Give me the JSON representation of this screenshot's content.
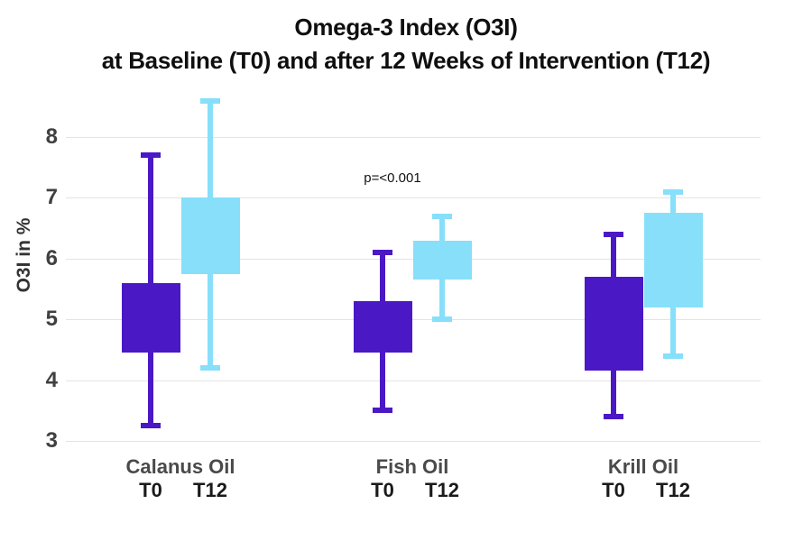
{
  "title": {
    "line1": "Omega-3 Index (O3I)",
    "line2": "at Baseline (T0) and after 12 Weeks of Intervention (T12)"
  },
  "colors": {
    "t0_box": "#4B18C6",
    "t12_box": "#87DFFA",
    "gridline": "#e4e4e4",
    "title_text": "#0f0f0f",
    "y_tick_text": "#404040",
    "group_label_text": "#4a4a4a",
    "time_label_text": "#1a1a1a"
  },
  "chart_data": {
    "type": "boxplot",
    "title": "Omega-3 Index (O3I) at Baseline (T0) and after 12 Weeks of Intervention (T12)",
    "ylabel": "O3I in %",
    "xlabel": "",
    "ylim": [
      3,
      8.6
    ],
    "yticks": [
      3,
      4,
      5,
      6,
      7,
      8
    ],
    "grid": true,
    "legend": "none",
    "groups": [
      "Calanus Oil",
      "Fish Oil",
      "Krill Oil"
    ],
    "timepoints": [
      "T0",
      "T12"
    ],
    "series": [
      {
        "group": "Calanus Oil",
        "timepoint": "T0",
        "whisker_low": 3.25,
        "q1": 4.45,
        "q3": 5.6,
        "whisker_high": 7.7
      },
      {
        "group": "Calanus Oil",
        "timepoint": "T12",
        "whisker_low": 4.2,
        "q1": 5.75,
        "q3": 7.0,
        "whisker_high": 8.6
      },
      {
        "group": "Fish Oil",
        "timepoint": "T0",
        "whisker_low": 3.5,
        "q1": 4.45,
        "q3": 5.3,
        "whisker_high": 6.1
      },
      {
        "group": "Fish Oil",
        "timepoint": "T12",
        "whisker_low": 5.0,
        "q1": 5.65,
        "q3": 6.3,
        "whisker_high": 6.7
      },
      {
        "group": "Krill Oil",
        "timepoint": "T0",
        "whisker_low": 3.4,
        "q1": 4.15,
        "q3": 5.7,
        "whisker_high": 6.4
      },
      {
        "group": "Krill Oil",
        "timepoint": "T12",
        "whisker_low": 4.4,
        "q1": 5.2,
        "q3": 6.75,
        "whisker_high": 7.1
      }
    ],
    "annotation": {
      "text": "p=<0.001",
      "near_group": "Fish Oil"
    }
  }
}
